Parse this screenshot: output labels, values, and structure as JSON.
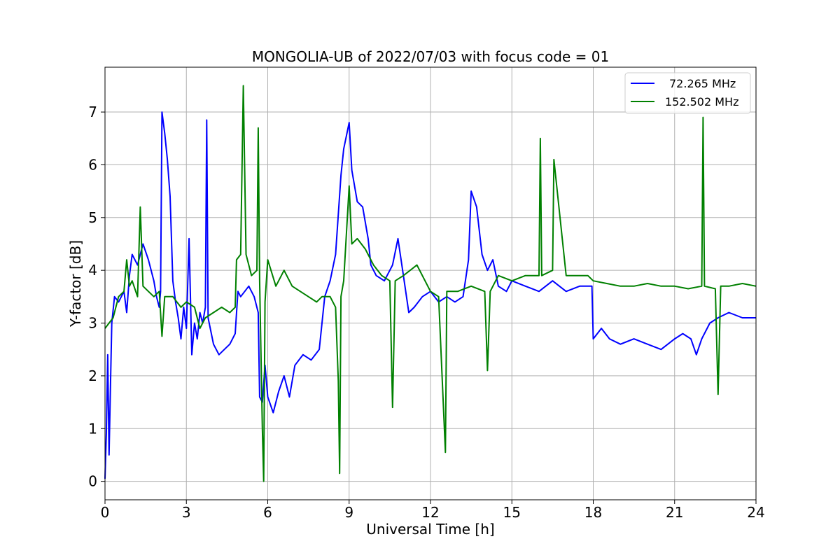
{
  "chart_data": {
    "type": "line",
    "title": "MONGOLIA-UB of 2022/07/03 with focus code = 01",
    "xlabel": "Universal Time [h]",
    "ylabel": "Y-factor [dB]",
    "xlim": [
      0,
      24
    ],
    "ylim": [
      -0.35,
      7.85
    ],
    "xticks": [
      0,
      3,
      6,
      9,
      12,
      15,
      18,
      21,
      24
    ],
    "yticks": [
      0,
      1,
      2,
      3,
      4,
      5,
      6,
      7
    ],
    "grid": true,
    "legend_position": "top-right",
    "series": [
      {
        "name": "72.265 MHz",
        "color": "#0000ff",
        "points": [
          [
            0.0,
            0.05
          ],
          [
            0.05,
            0.9
          ],
          [
            0.1,
            2.4
          ],
          [
            0.15,
            0.5
          ],
          [
            0.2,
            1.8
          ],
          [
            0.25,
            3.0
          ],
          [
            0.35,
            3.5
          ],
          [
            0.5,
            3.4
          ],
          [
            0.7,
            3.6
          ],
          [
            0.8,
            3.2
          ],
          [
            0.9,
            3.9
          ],
          [
            1.0,
            4.3
          ],
          [
            1.2,
            4.1
          ],
          [
            1.4,
            4.5
          ],
          [
            1.6,
            4.2
          ],
          [
            1.8,
            3.8
          ],
          [
            1.9,
            3.5
          ],
          [
            2.0,
            3.3
          ],
          [
            2.05,
            3.6
          ],
          [
            2.1,
            7.0
          ],
          [
            2.2,
            6.6
          ],
          [
            2.3,
            6.1
          ],
          [
            2.4,
            5.4
          ],
          [
            2.5,
            3.8
          ],
          [
            2.6,
            3.4
          ],
          [
            2.7,
            3.1
          ],
          [
            2.8,
            2.7
          ],
          [
            2.9,
            3.3
          ],
          [
            3.0,
            2.9
          ],
          [
            3.1,
            4.6
          ],
          [
            3.2,
            2.4
          ],
          [
            3.3,
            3.0
          ],
          [
            3.4,
            2.7
          ],
          [
            3.5,
            3.2
          ],
          [
            3.6,
            3.0
          ],
          [
            3.7,
            3.3
          ],
          [
            3.75,
            6.85
          ],
          [
            3.8,
            3.1
          ],
          [
            4.0,
            2.6
          ],
          [
            4.2,
            2.4
          ],
          [
            4.4,
            2.5
          ],
          [
            4.6,
            2.6
          ],
          [
            4.8,
            2.8
          ],
          [
            4.9,
            3.6
          ],
          [
            5.0,
            3.5
          ],
          [
            5.3,
            3.7
          ],
          [
            5.5,
            3.5
          ],
          [
            5.65,
            3.2
          ],
          [
            5.7,
            1.6
          ],
          [
            5.8,
            1.5
          ],
          [
            5.9,
            2.2
          ],
          [
            6.0,
            1.6
          ],
          [
            6.2,
            1.3
          ],
          [
            6.4,
            1.7
          ],
          [
            6.6,
            2.0
          ],
          [
            6.8,
            1.6
          ],
          [
            7.0,
            2.2
          ],
          [
            7.3,
            2.4
          ],
          [
            7.6,
            2.3
          ],
          [
            7.9,
            2.5
          ],
          [
            8.1,
            3.5
          ],
          [
            8.3,
            3.8
          ],
          [
            8.5,
            4.3
          ],
          [
            8.7,
            5.8
          ],
          [
            8.8,
            6.3
          ],
          [
            9.0,
            6.8
          ],
          [
            9.1,
            5.9
          ],
          [
            9.3,
            5.3
          ],
          [
            9.5,
            5.2
          ],
          [
            9.7,
            4.6
          ],
          [
            9.8,
            4.1
          ],
          [
            10.0,
            3.9
          ],
          [
            10.3,
            3.8
          ],
          [
            10.6,
            4.1
          ],
          [
            10.8,
            4.6
          ],
          [
            11.0,
            3.9
          ],
          [
            11.2,
            3.2
          ],
          [
            11.4,
            3.3
          ],
          [
            11.7,
            3.5
          ],
          [
            12.0,
            3.6
          ],
          [
            12.3,
            3.4
          ],
          [
            12.6,
            3.5
          ],
          [
            12.9,
            3.4
          ],
          [
            13.2,
            3.5
          ],
          [
            13.4,
            4.2
          ],
          [
            13.5,
            5.5
          ],
          [
            13.7,
            5.2
          ],
          [
            13.9,
            4.3
          ],
          [
            14.1,
            4.0
          ],
          [
            14.3,
            4.2
          ],
          [
            14.5,
            3.7
          ],
          [
            14.8,
            3.6
          ],
          [
            15.0,
            3.8
          ],
          [
            15.5,
            3.7
          ],
          [
            16.0,
            3.6
          ],
          [
            16.5,
            3.8
          ],
          [
            17.0,
            3.6
          ],
          [
            17.5,
            3.7
          ],
          [
            17.95,
            3.7
          ],
          [
            18.0,
            2.7
          ],
          [
            18.3,
            2.9
          ],
          [
            18.6,
            2.7
          ],
          [
            19.0,
            2.6
          ],
          [
            19.5,
            2.7
          ],
          [
            20.0,
            2.6
          ],
          [
            20.5,
            2.5
          ],
          [
            21.0,
            2.7
          ],
          [
            21.3,
            2.8
          ],
          [
            21.6,
            2.7
          ],
          [
            21.8,
            2.4
          ],
          [
            22.0,
            2.7
          ],
          [
            22.3,
            3.0
          ],
          [
            22.6,
            3.1
          ],
          [
            23.0,
            3.2
          ],
          [
            23.5,
            3.1
          ],
          [
            24.0,
            3.1
          ]
        ]
      },
      {
        "name": "152.502 MHz",
        "color": "#008000",
        "points": [
          [
            0.0,
            2.9
          ],
          [
            0.3,
            3.1
          ],
          [
            0.5,
            3.5
          ],
          [
            0.7,
            3.6
          ],
          [
            0.8,
            4.2
          ],
          [
            0.9,
            3.7
          ],
          [
            1.0,
            3.8
          ],
          [
            1.2,
            3.5
          ],
          [
            1.3,
            5.2
          ],
          [
            1.4,
            3.7
          ],
          [
            1.6,
            3.6
          ],
          [
            1.8,
            3.5
          ],
          [
            2.0,
            3.6
          ],
          [
            2.1,
            2.75
          ],
          [
            2.2,
            3.5
          ],
          [
            2.5,
            3.5
          ],
          [
            2.8,
            3.3
          ],
          [
            3.0,
            3.4
          ],
          [
            3.3,
            3.3
          ],
          [
            3.5,
            2.9
          ],
          [
            3.7,
            3.1
          ],
          [
            4.0,
            3.2
          ],
          [
            4.3,
            3.3
          ],
          [
            4.6,
            3.2
          ],
          [
            4.8,
            3.3
          ],
          [
            4.85,
            4.2
          ],
          [
            5.0,
            4.3
          ],
          [
            5.1,
            7.5
          ],
          [
            5.2,
            4.3
          ],
          [
            5.4,
            3.9
          ],
          [
            5.6,
            4.0
          ],
          [
            5.65,
            6.7
          ],
          [
            5.7,
            3.8
          ],
          [
            5.8,
            1.0
          ],
          [
            5.85,
            0.0
          ],
          [
            5.9,
            3.4
          ],
          [
            6.0,
            4.2
          ],
          [
            6.3,
            3.7
          ],
          [
            6.6,
            4.0
          ],
          [
            6.9,
            3.7
          ],
          [
            7.2,
            3.6
          ],
          [
            7.5,
            3.5
          ],
          [
            7.8,
            3.4
          ],
          [
            8.0,
            3.5
          ],
          [
            8.3,
            3.5
          ],
          [
            8.5,
            3.3
          ],
          [
            8.6,
            1.9
          ],
          [
            8.65,
            0.15
          ],
          [
            8.7,
            3.5
          ],
          [
            8.8,
            3.8
          ],
          [
            9.0,
            5.6
          ],
          [
            9.1,
            4.5
          ],
          [
            9.3,
            4.6
          ],
          [
            9.6,
            4.4
          ],
          [
            9.9,
            4.1
          ],
          [
            10.2,
            3.9
          ],
          [
            10.5,
            3.8
          ],
          [
            10.6,
            1.4
          ],
          [
            10.7,
            3.8
          ],
          [
            11.0,
            3.9
          ],
          [
            11.5,
            4.1
          ],
          [
            12.0,
            3.6
          ],
          [
            12.3,
            3.5
          ],
          [
            12.55,
            0.55
          ],
          [
            12.6,
            3.6
          ],
          [
            13.0,
            3.6
          ],
          [
            13.5,
            3.7
          ],
          [
            14.0,
            3.6
          ],
          [
            14.1,
            2.1
          ],
          [
            14.2,
            3.6
          ],
          [
            14.5,
            3.9
          ],
          [
            15.0,
            3.8
          ],
          [
            15.5,
            3.9
          ],
          [
            16.0,
            3.9
          ],
          [
            16.05,
            6.5
          ],
          [
            16.1,
            3.9
          ],
          [
            16.5,
            4.0
          ],
          [
            16.55,
            6.1
          ],
          [
            17.0,
            3.9
          ],
          [
            17.5,
            3.9
          ],
          [
            17.8,
            3.9
          ],
          [
            18.0,
            3.8
          ],
          [
            18.5,
            3.75
          ],
          [
            19.0,
            3.7
          ],
          [
            19.5,
            3.7
          ],
          [
            20.0,
            3.75
          ],
          [
            20.5,
            3.7
          ],
          [
            21.0,
            3.7
          ],
          [
            21.5,
            3.65
          ],
          [
            22.0,
            3.7
          ],
          [
            22.05,
            6.9
          ],
          [
            22.1,
            3.7
          ],
          [
            22.5,
            3.65
          ],
          [
            22.6,
            1.65
          ],
          [
            22.7,
            3.7
          ],
          [
            23.0,
            3.7
          ],
          [
            23.5,
            3.75
          ],
          [
            24.0,
            3.7
          ]
        ]
      }
    ]
  }
}
